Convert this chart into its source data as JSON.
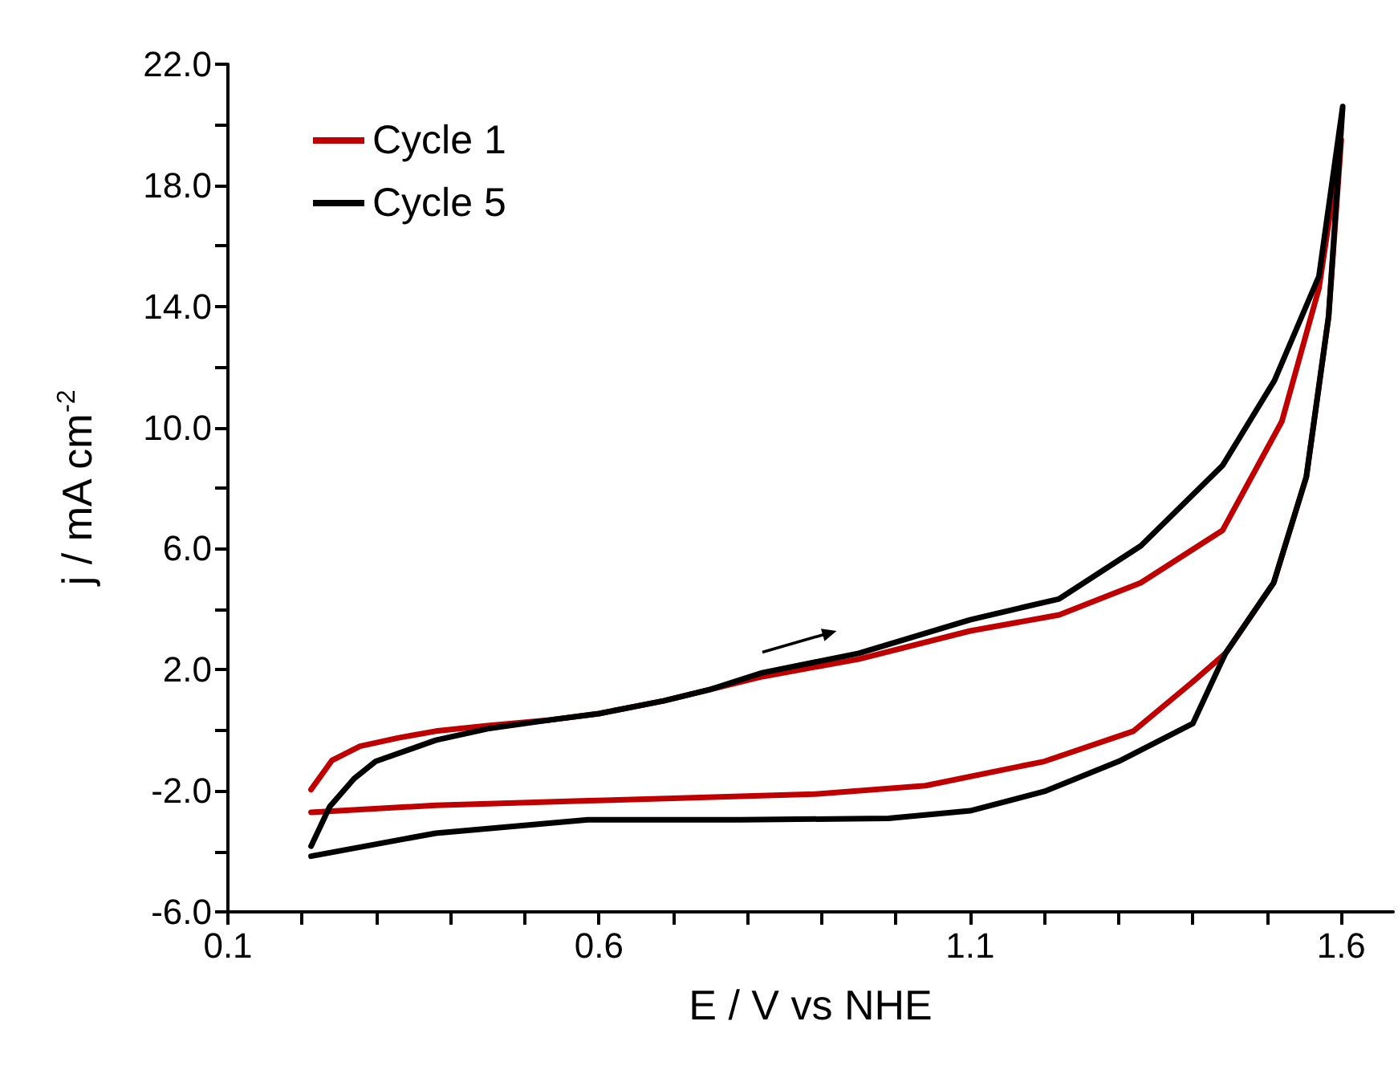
{
  "chart_data": {
    "type": "line",
    "xlabel": "E / V vs NHE",
    "ylabel": "j / mA cm$^{-2}$",
    "xlim": [
      0.1,
      1.67
    ],
    "xticks": [
      0.1,
      {
        "value": 0.2,
        "label": null
      },
      {
        "value": 0.3,
        "label": null
      },
      {
        "value": 0.4,
        "label": null
      },
      {
        "value": 0.5,
        "label": null
      },
      0.6,
      {
        "value": 0.7,
        "label": null
      },
      {
        "value": 0.8,
        "label": null
      },
      {
        "value": 0.9,
        "label": null
      },
      {
        "value": 1.0,
        "label": null
      },
      1.1,
      {
        "value": 1.2,
        "label": null
      },
      {
        "value": 1.3,
        "label": null
      },
      {
        "value": 1.4,
        "label": null
      },
      {
        "value": 1.5,
        "label": null
      },
      1.6
    ],
    "ylim": [
      -6,
      22
    ],
    "yticks": [
      {
        "value": -6,
        "label": "-6.0"
      },
      {
        "value": -4,
        "label": null
      },
      {
        "value": -2,
        "label": "-2.0"
      },
      {
        "value": 0,
        "label": null
      },
      {
        "value": 2,
        "label": "2.0"
      },
      {
        "value": 4,
        "label": null
      },
      {
        "value": 6,
        "label": "6.0"
      },
      {
        "value": 8,
        "label": null
      },
      {
        "value": 10,
        "label": "10.0"
      },
      {
        "value": 12,
        "label": null
      },
      {
        "value": 14,
        "label": "14.0"
      },
      {
        "value": 16,
        "label": null
      },
      {
        "value": 18,
        "label": "18.0"
      },
      {
        "value": 20,
        "label": null
      },
      {
        "value": 22,
        "label": "22.0"
      }
    ],
    "grid": false,
    "legend": "top left",
    "marker": "none",
    "line_style": "solid",
    "series": [
      {
        "name": "Cycle 1",
        "color": "#c00000",
        "x": [
          0.212,
          0.24,
          0.278,
          0.33,
          0.38,
          0.45,
          0.534,
          0.6,
          0.687,
          0.75,
          0.82,
          0.95,
          1.1,
          1.22,
          1.33,
          1.44,
          1.52,
          1.57,
          1.6,
          1.583,
          1.553,
          1.509,
          1.444,
          1.4,
          1.32,
          1.2,
          1.04,
          0.89,
          0.7,
          0.585,
          0.38,
          0.212
        ],
        "values": [
          -1.96,
          -1.0,
          -0.53,
          -0.25,
          -0.03,
          0.15,
          0.34,
          0.55,
          0.97,
          1.35,
          1.77,
          2.35,
          3.28,
          3.81,
          4.87,
          6.6,
          10.2,
          14.6,
          19.5,
          13.67,
          8.37,
          4.87,
          2.54,
          1.6,
          -0.03,
          -1.03,
          -1.83,
          -2.11,
          -2.25,
          -2.33,
          -2.48,
          -2.71
        ]
      },
      {
        "name": "Cycle 5",
        "color": "#000000",
        "x": [
          0.212,
          0.237,
          0.27,
          0.299,
          0.38,
          0.45,
          0.534,
          0.6,
          0.687,
          0.75,
          0.82,
          0.95,
          1.1,
          1.22,
          1.33,
          1.44,
          1.51,
          1.57,
          1.602,
          1.583,
          1.553,
          1.509,
          1.444,
          1.4,
          1.3,
          1.2,
          1.1,
          0.99,
          0.79,
          0.585,
          0.38,
          0.212
        ],
        "values": [
          -3.83,
          -2.53,
          -1.6,
          -1.03,
          -0.33,
          0.05,
          0.34,
          0.55,
          0.97,
          1.35,
          1.9,
          2.54,
          3.65,
          4.34,
          6.09,
          8.74,
          11.55,
          15.0,
          20.6,
          13.67,
          8.37,
          4.87,
          2.54,
          0.22,
          -1.03,
          -2.02,
          -2.66,
          -2.91,
          -2.96,
          -2.96,
          -3.4,
          -4.16
        ]
      }
    ]
  }
}
